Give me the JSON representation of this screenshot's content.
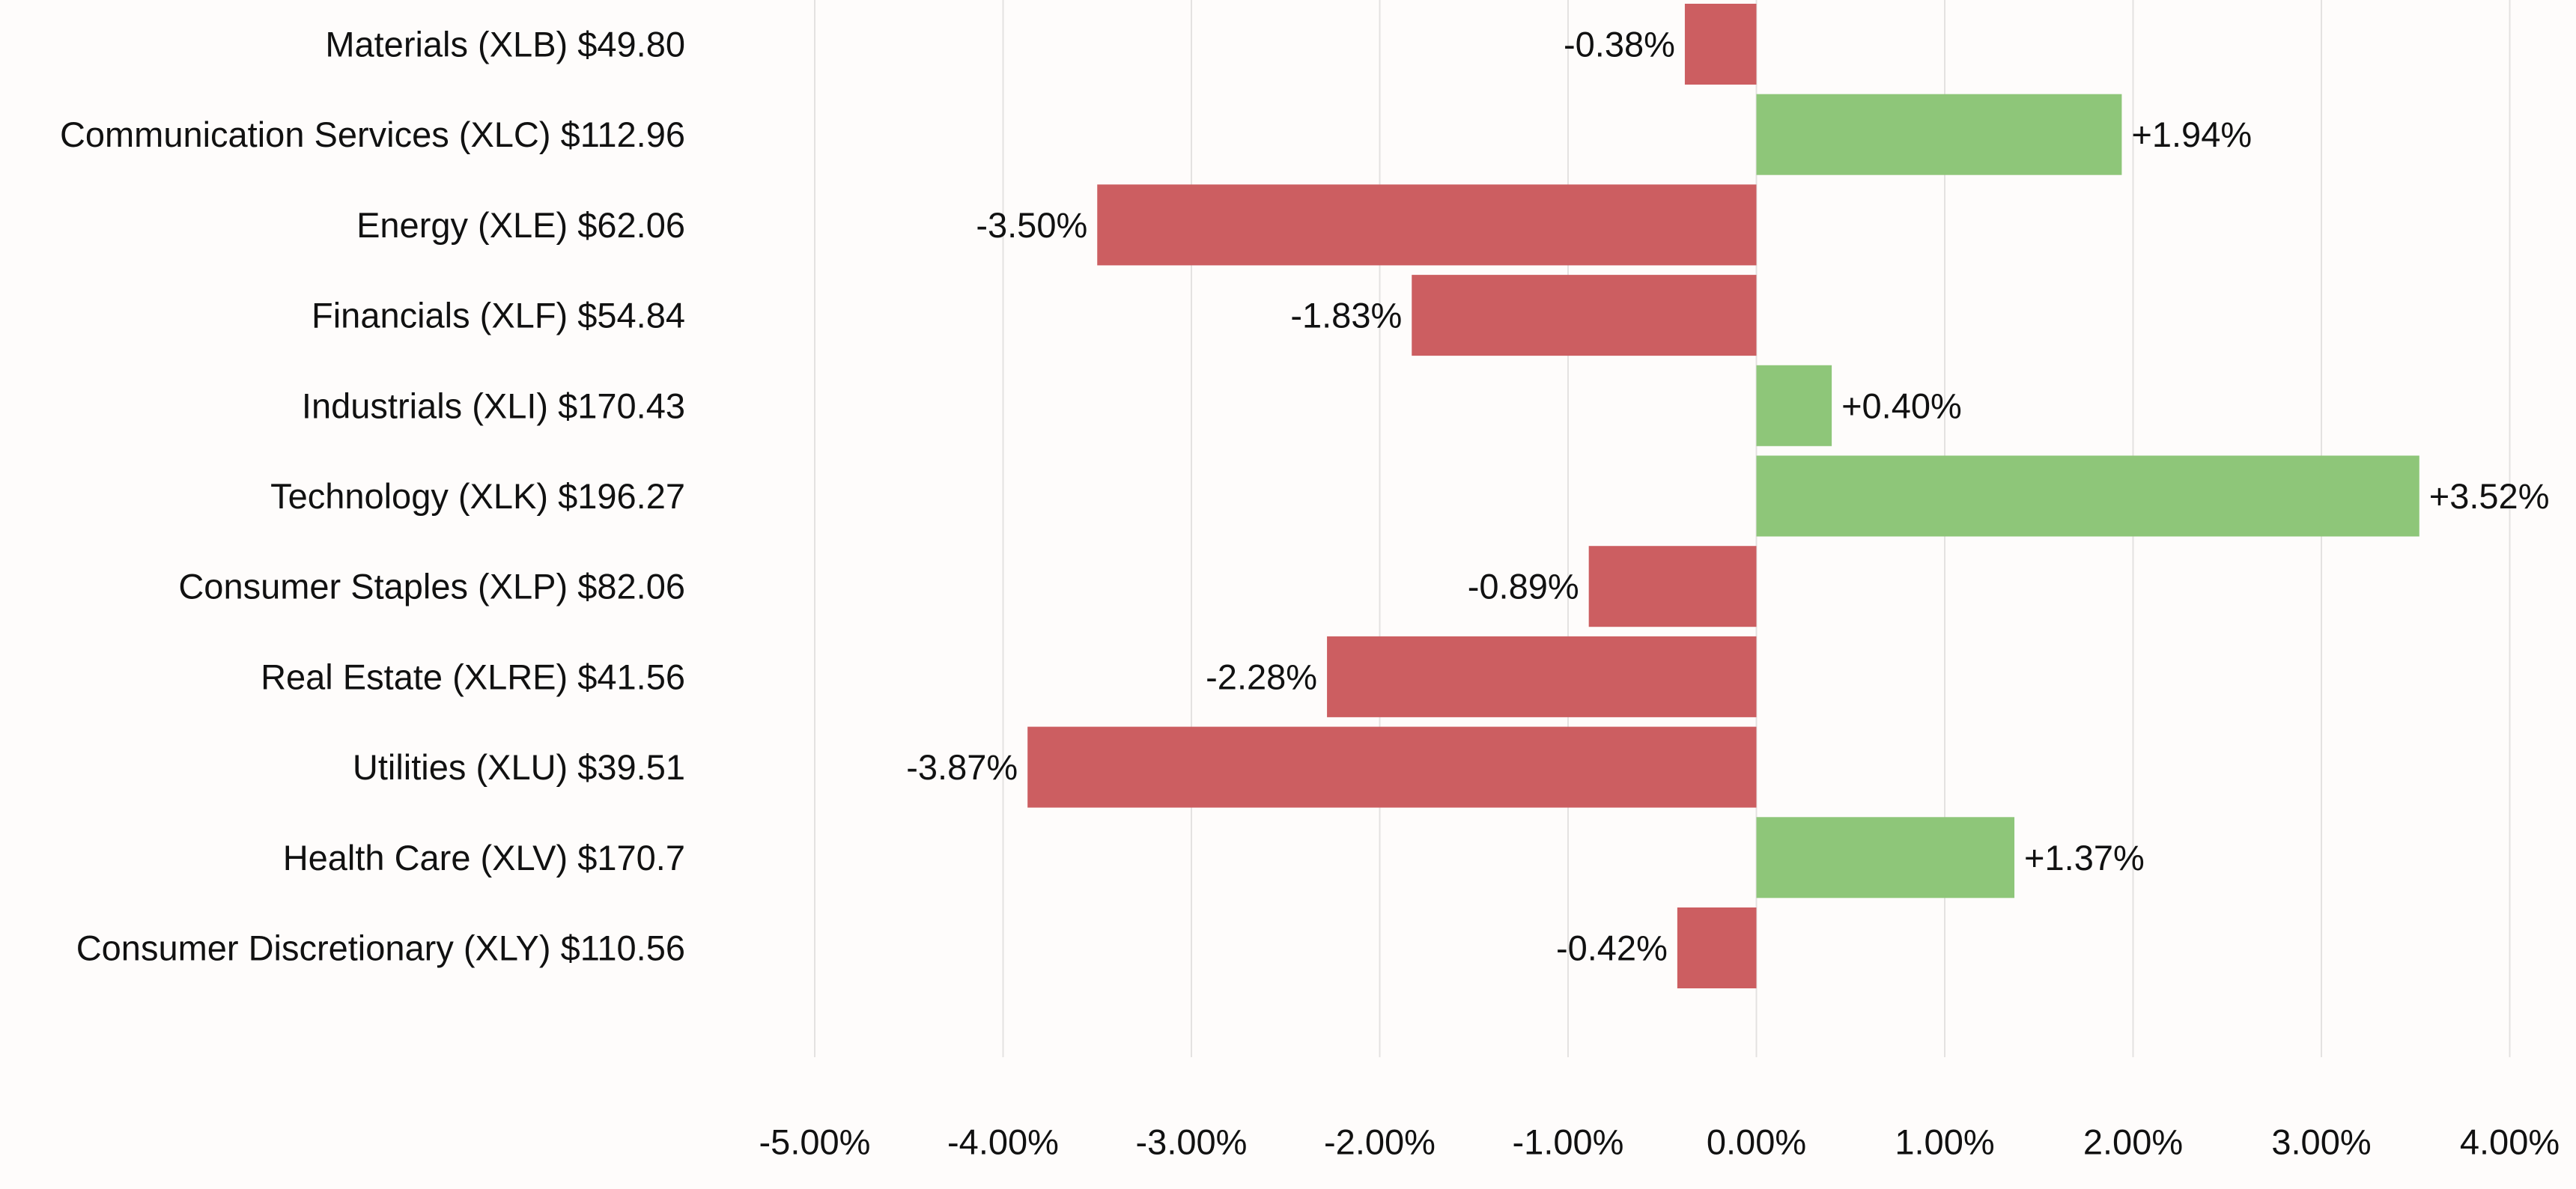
{
  "chart_data": {
    "type": "bar",
    "orientation": "horizontal",
    "title": "",
    "xlabel": "",
    "ylabel": "",
    "xlim": [
      -5,
      4
    ],
    "x_ticks": [
      {
        "value": -5,
        "label": "-5.00%"
      },
      {
        "value": -4,
        "label": "-4.00%"
      },
      {
        "value": -3,
        "label": "-3.00%"
      },
      {
        "value": -2,
        "label": "-2.00%"
      },
      {
        "value": -1,
        "label": "-1.00%"
      },
      {
        "value": 0,
        "label": "0.00%"
      },
      {
        "value": 1,
        "label": "1.00%"
      },
      {
        "value": 2,
        "label": "2.00%"
      },
      {
        "value": 3,
        "label": "3.00%"
      },
      {
        "value": 4,
        "label": "4.00%"
      }
    ],
    "grid": "vertical",
    "legend": "none",
    "categories": [
      "Materials (XLB) $49.80",
      "Communication Services (XLC) $112.96",
      "Energy (XLE) $62.06",
      "Financials (XLF) $54.84",
      "Industrials (XLI) $170.43",
      "Technology (XLK) $196.27",
      "Consumer Staples (XLP) $82.06",
      "Real Estate (XLRE) $41.56",
      "Utilities (XLU) $39.51",
      "Health Care (XLV) $170.7",
      "Consumer Discretionary (XLY) $110.56"
    ],
    "values": [
      -0.38,
      1.94,
      -3.5,
      -1.83,
      0.4,
      3.52,
      -0.89,
      -2.28,
      -3.87,
      1.37,
      -0.42
    ],
    "data_labels": [
      "-0.38%",
      "+1.94%",
      "-3.50%",
      "-1.83%",
      "+0.40%",
      "+3.52%",
      "-0.89%",
      "-2.28%",
      "-3.87%",
      "+1.37%",
      "-0.42%"
    ],
    "colors": {
      "positive": "#8ec679",
      "negative": "#cc5e61",
      "background": "#fefcfb",
      "grid": "#e4e2e1"
    }
  }
}
